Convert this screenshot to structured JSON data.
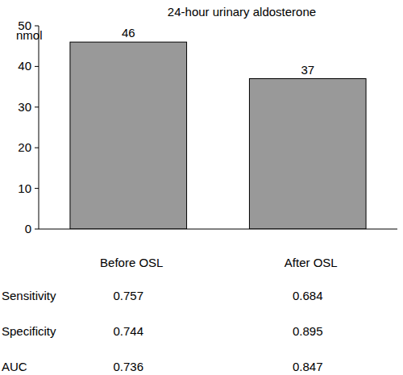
{
  "chart_data": {
    "type": "bar",
    "title": "24-hour urinary aldosterone",
    "y_label": "nmol",
    "categories": [
      "Before OSL",
      "After OSL"
    ],
    "values": [
      46,
      37
    ],
    "color": "#999999",
    "ylim": [
      0,
      50
    ],
    "yticks": [
      0,
      10,
      20,
      30,
      40,
      50
    ],
    "grid": false,
    "data_labels": true
  },
  "table": {
    "rows": [
      {
        "label": "Sensitivity",
        "values": [
          0.757,
          0.684
        ]
      },
      {
        "label": "Specificity",
        "values": [
          0.744,
          0.895
        ]
      },
      {
        "label": "AUC",
        "values": [
          0.736,
          0.847
        ]
      }
    ]
  }
}
